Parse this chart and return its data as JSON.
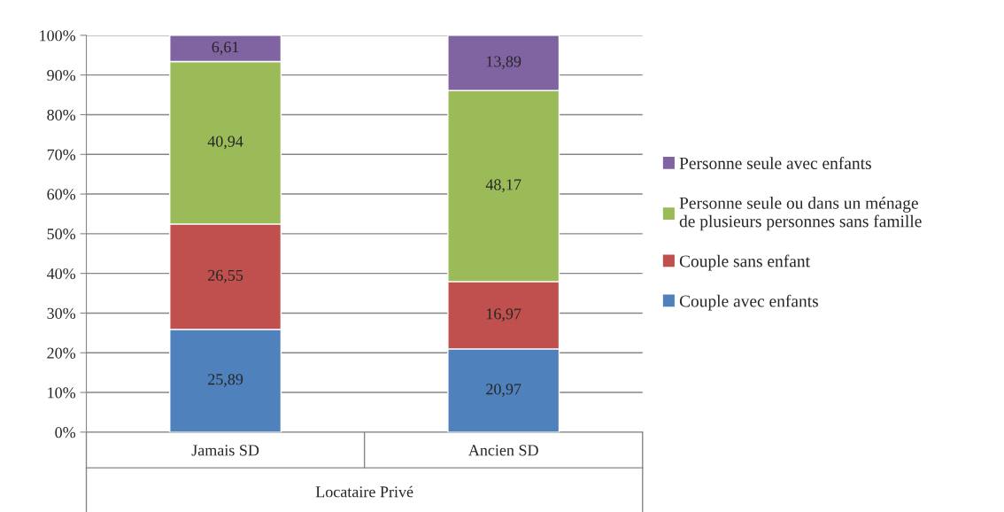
{
  "chart_data": {
    "type": "bar",
    "stacked": true,
    "categories": [
      "Jamais SD",
      "Ancien SD"
    ],
    "xlabel": "Locataire Privé",
    "ylim": [
      0,
      100
    ],
    "yticks": [
      {
        "value": 0,
        "label": "0%"
      },
      {
        "value": 10,
        "label": "10%"
      },
      {
        "value": 20,
        "label": "20%"
      },
      {
        "value": 30,
        "label": "30%"
      },
      {
        "value": 40,
        "label": "40%"
      },
      {
        "value": 50,
        "label": "50%"
      },
      {
        "value": 60,
        "label": "60%"
      },
      {
        "value": 70,
        "label": "70%"
      },
      {
        "value": 80,
        "label": "80%"
      },
      {
        "value": 90,
        "label": "90%"
      },
      {
        "value": 100,
        "label": "100%"
      }
    ],
    "grid": "y",
    "legend": "right",
    "series": [
      {
        "name": "Couple avec enfants",
        "color": "#4f81bd",
        "values": [
          25.89,
          20.97
        ],
        "value_labels": [
          "25,89",
          "20,97"
        ]
      },
      {
        "name": "Couple sans enfant",
        "color": "#c0504d",
        "values": [
          26.55,
          16.97
        ],
        "value_labels": [
          "26,55",
          "16,97"
        ]
      },
      {
        "name": "Personne seule ou dans un ménage\nde plusieurs personnes sans famille",
        "color": "#9bbb59",
        "values": [
          40.94,
          48.17
        ],
        "value_labels": [
          "40,94",
          "48,17"
        ]
      },
      {
        "name": "Personne seule avec enfants",
        "color": "#8064a2",
        "values": [
          6.61,
          13.89
        ],
        "value_labels": [
          "6,61",
          "13,89"
        ]
      }
    ]
  }
}
